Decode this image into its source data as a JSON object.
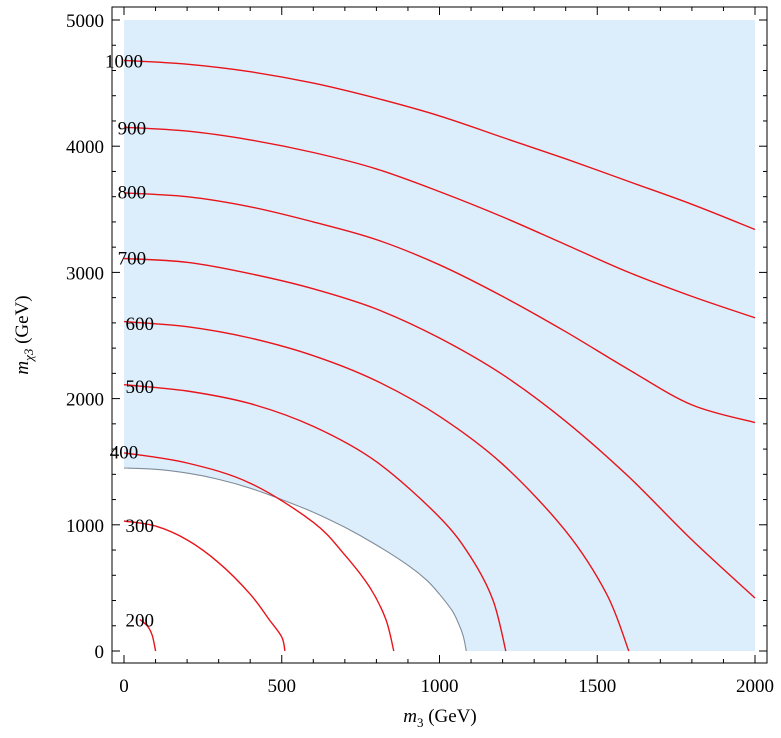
{
  "chart_data": {
    "type": "contour",
    "xlabel": {
      "main": "m",
      "sub": "3",
      "unit": " (GeV)"
    },
    "ylabel": {
      "main": "m",
      "sub": "χ3",
      "unit": " (GeV)"
    },
    "xlim": [
      0,
      2000
    ],
    "ylim": [
      0,
      5000
    ],
    "xticks": [
      0,
      500,
      1000,
      1500,
      2000
    ],
    "yticks": [
      0,
      1000,
      2000,
      3000,
      4000,
      5000
    ],
    "xtick_labels": [
      "0",
      "500",
      "1000",
      "1500",
      "2000"
    ],
    "ytick_labels": [
      "0",
      "1000",
      "2000",
      "3000",
      "4000",
      "5000"
    ],
    "shaded_region": {
      "color": "#dceefc",
      "boundary_color": "#7f8c99",
      "excluded_corner_boundary": [
        [
          0,
          1450
        ],
        [
          100,
          1440
        ],
        [
          200,
          1410
        ],
        [
          300,
          1360
        ],
        [
          400,
          1290
        ],
        [
          500,
          1200
        ],
        [
          600,
          1100
        ],
        [
          700,
          980
        ],
        [
          800,
          840
        ],
        [
          900,
          680
        ],
        [
          960,
          560
        ],
        [
          1000,
          450
        ],
        [
          1040,
          320
        ],
        [
          1060,
          220
        ],
        [
          1075,
          120
        ],
        [
          1085,
          0
        ]
      ]
    },
    "contour_color": "#e8141a",
    "contours": [
      {
        "level": "200",
        "points": [
          [
            50,
            250
          ],
          [
            75,
            195
          ],
          [
            90,
            120
          ],
          [
            100,
            0
          ]
        ]
      },
      {
        "level": "300",
        "points": [
          [
            0,
            1030
          ],
          [
            100,
            990
          ],
          [
            200,
            880
          ],
          [
            300,
            700
          ],
          [
            400,
            450
          ],
          [
            460,
            250
          ],
          [
            500,
            110
          ],
          [
            510,
            0
          ]
        ]
      },
      {
        "level": "400",
        "points": [
          [
            0,
            1570
          ],
          [
            200,
            1490
          ],
          [
            400,
            1330
          ],
          [
            600,
            1020
          ],
          [
            700,
            760
          ],
          [
            780,
            500
          ],
          [
            830,
            250
          ],
          [
            855,
            0
          ]
        ]
      },
      {
        "level": "500",
        "points": [
          [
            0,
            2110
          ],
          [
            200,
            2060
          ],
          [
            400,
            1960
          ],
          [
            600,
            1780
          ],
          [
            800,
            1500
          ],
          [
            1000,
            1060
          ],
          [
            1100,
            740
          ],
          [
            1170,
            400
          ],
          [
            1210,
            0
          ]
        ]
      },
      {
        "level": "600",
        "points": [
          [
            0,
            2610
          ],
          [
            200,
            2570
          ],
          [
            400,
            2480
          ],
          [
            600,
            2340
          ],
          [
            800,
            2140
          ],
          [
            1000,
            1860
          ],
          [
            1200,
            1480
          ],
          [
            1400,
            950
          ],
          [
            1530,
            450
          ],
          [
            1600,
            0
          ]
        ]
      },
      {
        "level": "700",
        "points": [
          [
            0,
            3110
          ],
          [
            200,
            3080
          ],
          [
            400,
            2990
          ],
          [
            600,
            2870
          ],
          [
            800,
            2710
          ],
          [
            1000,
            2480
          ],
          [
            1200,
            2190
          ],
          [
            1400,
            1820
          ],
          [
            1600,
            1380
          ],
          [
            1800,
            880
          ],
          [
            2000,
            420
          ]
        ]
      },
      {
        "level": "800",
        "points": [
          [
            0,
            3630
          ],
          [
            200,
            3600
          ],
          [
            400,
            3520
          ],
          [
            600,
            3400
          ],
          [
            800,
            3260
          ],
          [
            1000,
            3060
          ],
          [
            1200,
            2810
          ],
          [
            1400,
            2530
          ],
          [
            1600,
            2230
          ],
          [
            1800,
            1950
          ],
          [
            2000,
            1810
          ]
        ]
      },
      {
        "level": "900",
        "points": [
          [
            0,
            4150
          ],
          [
            200,
            4120
          ],
          [
            400,
            4050
          ],
          [
            600,
            3950
          ],
          [
            800,
            3820
          ],
          [
            1000,
            3640
          ],
          [
            1200,
            3440
          ],
          [
            1400,
            3220
          ],
          [
            1600,
            3000
          ],
          [
            1800,
            2810
          ],
          [
            2000,
            2640
          ]
        ]
      },
      {
        "level": "1000",
        "points": [
          [
            0,
            4680
          ],
          [
            200,
            4650
          ],
          [
            400,
            4590
          ],
          [
            600,
            4500
          ],
          [
            800,
            4380
          ],
          [
            1000,
            4240
          ],
          [
            1200,
            4070
          ],
          [
            1400,
            3900
          ],
          [
            1600,
            3720
          ],
          [
            1800,
            3540
          ],
          [
            2000,
            3340
          ]
        ]
      }
    ],
    "contour_labels": [
      {
        "text": "200",
        "x": 50,
        "y": 250
      },
      {
        "text": "300",
        "x": 50,
        "y": 1000
      },
      {
        "text": "400",
        "x": 0,
        "y": 1580
      },
      {
        "text": "500",
        "x": 50,
        "y": 2100
      },
      {
        "text": "600",
        "x": 50,
        "y": 2600
      },
      {
        "text": "700",
        "x": 25,
        "y": 3120
      },
      {
        "text": "800",
        "x": 25,
        "y": 3640
      },
      {
        "text": "900",
        "x": 25,
        "y": 4150
      },
      {
        "text": "1000",
        "x": 0,
        "y": 4680
      }
    ]
  }
}
